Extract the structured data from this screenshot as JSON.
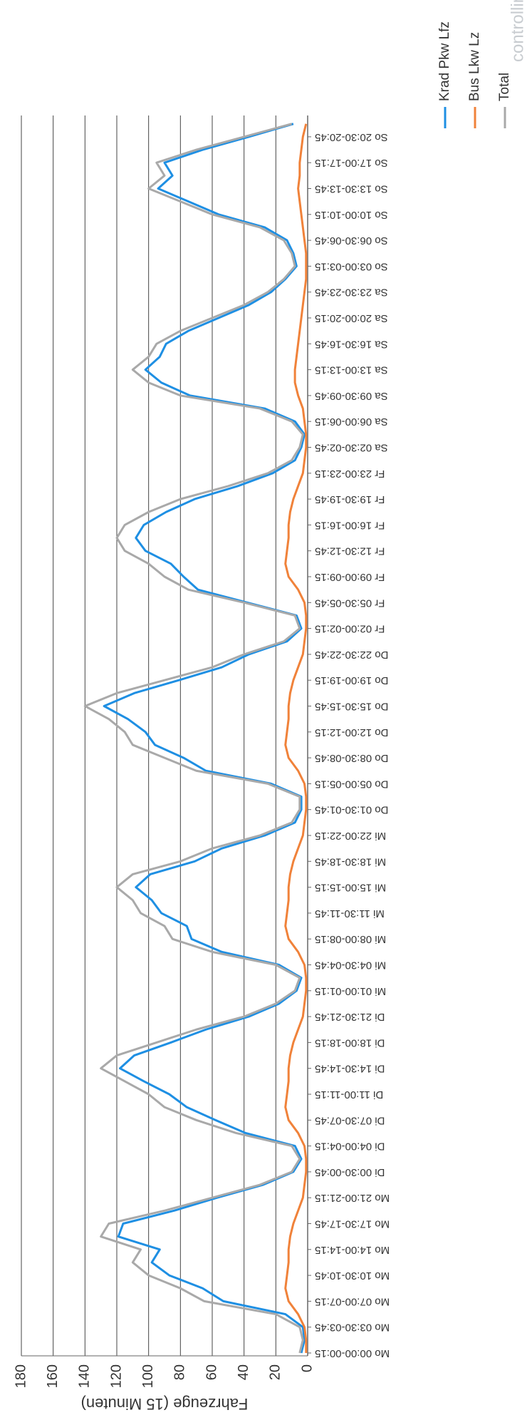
{
  "chart_data": {
    "type": "line",
    "y_label": "Fahrzeuge (15 Minuten)",
    "watermark": "controllin",
    "categories": [
      "Mo 00:00-00:15",
      null,
      "Mo 03:30-03:45",
      null,
      "Mo 07:00-07:15",
      null,
      "Mo 10:30-10:45",
      null,
      "Mo 14:00-14:15",
      null,
      "Mo 17:30-17:45",
      null,
      "Mo 21:00-21:15",
      null,
      "Di 00:30-00:45",
      null,
      "Di 04:00-04:15",
      null,
      "Di 07:30-07:45",
      null,
      "Di 11:00-11:15",
      null,
      "Di 14:30-14:45",
      null,
      "Di 18:00-18:15",
      null,
      "Di 21:30-21:45",
      null,
      "Mi 01:00-01:15",
      null,
      "Mi 04:30-04:45",
      null,
      "Mi 08:00-08:15",
      null,
      "Mi 11:30-11:45",
      null,
      "Mi 15:00-15:15",
      null,
      "Mi 18:30-18:45",
      null,
      "Mi 22:00-22:15",
      null,
      "Do 01:30-01:45",
      null,
      "Do 05:00-05:15",
      null,
      "Do 08:30-08:45",
      null,
      "Do 12:00-12:15",
      null,
      "Do 15:30-15:45",
      null,
      "Do 19:00-19:15",
      null,
      "Do 22:30-22:45",
      null,
      "Fr 02:00-02:15",
      null,
      "Fr 05:30-05:45",
      null,
      "Fr 09:00-09:15",
      null,
      "Fr 12:30-12:45",
      null,
      "Fr 16:00-16:15",
      null,
      "Fr 19:30-19:45",
      null,
      "Fr 23:00-23:15",
      null,
      "Sa 02:30-02:45",
      null,
      "Sa 06:00-06:15",
      null,
      "Sa 09:30-09:45",
      null,
      "Sa 13:00-13:15",
      null,
      "Sa 16:30-16:45",
      null,
      "Sa 20:00-20:15",
      null,
      "Sa 23:30-23:45",
      null,
      "So 03:00-03:15",
      null,
      "So 06:30-06:45",
      null,
      "So 10:00-10:15",
      null,
      "So 13:30-13:45",
      null,
      "So 17:00-17:15",
      null,
      "So 20:30-20:45",
      null
    ],
    "series": [
      {
        "name": "Krad Pkw Lfz",
        "color": "#1e8fe3",
        "values": [
          4,
          2,
          3,
          14,
          53,
          66,
          87,
          98,
          93,
          119,
          116,
          84,
          57,
          28,
          9,
          4,
          8,
          39,
          58,
          76,
          87,
          103,
          118,
          109,
          86,
          64,
          37,
          18,
          7,
          4,
          18,
          54,
          73,
          76,
          92,
          98,
          108,
          99,
          71,
          54,
          27,
          8,
          4,
          4,
          23,
          64,
          78,
          96,
          102,
          113,
          128,
          109,
          81,
          54,
          37,
          13,
          4,
          7,
          38,
          69,
          78,
          86,
          102,
          108,
          103,
          89,
          71,
          44,
          22,
          8,
          4,
          2,
          8,
          27,
          74,
          92,
          102,
          93,
          89,
          75,
          56,
          37,
          23,
          14,
          7,
          9,
          13,
          27,
          56,
          75,
          94,
          85,
          90,
          66,
          37,
          9
        ]
      },
      {
        "name": "Bus Lkw Lz",
        "color": "#f0823a",
        "values": [
          1,
          1,
          2,
          6,
          12,
          14,
          13,
          12,
          12,
          11,
          9,
          6,
          3,
          2,
          1,
          1,
          2,
          6,
          12,
          14,
          13,
          12,
          12,
          11,
          9,
          6,
          3,
          2,
          1,
          1,
          2,
          6,
          12,
          14,
          13,
          12,
          12,
          11,
          9,
          6,
          3,
          2,
          1,
          1,
          2,
          6,
          12,
          14,
          13,
          12,
          12,
          11,
          9,
          6,
          3,
          2,
          1,
          1,
          2,
          6,
          12,
          14,
          13,
          12,
          12,
          11,
          9,
          6,
          3,
          2,
          1,
          1,
          2,
          3,
          6,
          8,
          8,
          7,
          6,
          5,
          4,
          3,
          2,
          1,
          1,
          1,
          2,
          3,
          4,
          5,
          6,
          5,
          5,
          4,
          3,
          1
        ]
      },
      {
        "name": "Total",
        "color": "#a9a9a9",
        "values": [
          5,
          3,
          5,
          20,
          65,
          80,
          100,
          110,
          105,
          130,
          125,
          90,
          60,
          30,
          10,
          5,
          10,
          45,
          70,
          90,
          100,
          115,
          130,
          120,
          95,
          70,
          40,
          20,
          8,
          5,
          20,
          60,
          85,
          90,
          105,
          110,
          120,
          110,
          80,
          60,
          30,
          10,
          5,
          5,
          25,
          70,
          90,
          110,
          115,
          125,
          140,
          120,
          90,
          60,
          40,
          15,
          5,
          8,
          40,
          75,
          90,
          100,
          115,
          120,
          115,
          100,
          80,
          50,
          25,
          10,
          5,
          3,
          10,
          30,
          80,
          100,
          110,
          100,
          95,
          80,
          60,
          40,
          25,
          15,
          8,
          10,
          15,
          30,
          60,
          80,
          100,
          90,
          95,
          70,
          40,
          10
        ]
      }
    ],
    "ylim": [
      0,
      180
    ],
    "yticks": [
      0,
      20,
      40,
      60,
      80,
      100,
      120,
      140,
      160,
      180
    ],
    "grid": true
  }
}
